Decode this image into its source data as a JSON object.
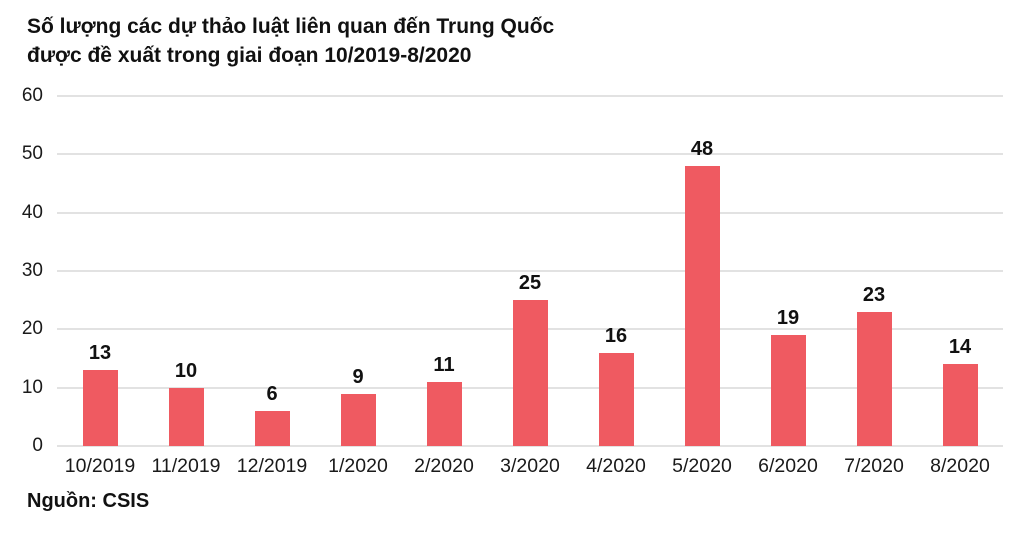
{
  "title": {
    "line1": "Số lượng các dự thảo luật liên quan đến Trung Quốc",
    "line2": "được đề xuất trong giai đoạn 10/2019-8/2020"
  },
  "source_label": "Nguồn: CSIS",
  "colors": {
    "bar": "#ef5a61",
    "gridline": "#e2e2e2",
    "text": "#111111"
  },
  "chart_data": {
    "type": "bar",
    "title": "Số lượng các dự thảo luật liên quan đến Trung Quốc được đề xuất trong giai đoạn 10/2019-8/2020",
    "categories": [
      "10/2019",
      "11/2019",
      "12/2019",
      "1/2020",
      "2/2020",
      "3/2020",
      "4/2020",
      "5/2020",
      "6/2020",
      "7/2020",
      "8/2020"
    ],
    "values": [
      13,
      10,
      6,
      9,
      11,
      25,
      16,
      48,
      19,
      23,
      14
    ],
    "xlabel": "",
    "ylabel": "",
    "ylim": [
      0,
      60
    ],
    "y_ticks": [
      0,
      10,
      20,
      30,
      40,
      50,
      60
    ],
    "grid": true,
    "legend": false,
    "value_labels": true,
    "bar_color": "#ef5a61",
    "source": "Nguồn: CSIS"
  }
}
